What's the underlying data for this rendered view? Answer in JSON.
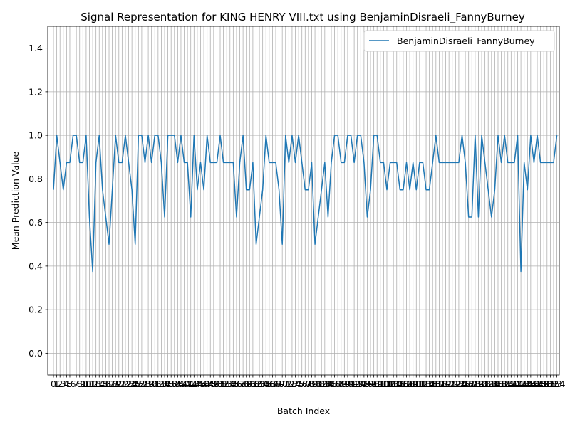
{
  "chart_data": {
    "type": "line",
    "title": "Signal Representation for KING HENRY VIII.txt using BenjaminDisraeli_FannyBurney",
    "xlabel": "Batch Index",
    "ylabel": "Mean Prediction Value",
    "ylim": [
      -0.1,
      1.5
    ],
    "xlim": [
      -1.75,
      154.75
    ],
    "yticks": [
      0.0,
      0.2,
      0.4,
      0.6,
      0.8,
      1.0,
      1.2,
      1.4
    ],
    "grid": true,
    "legend_position": "top-right",
    "series": [
      {
        "name": "BenjaminDisraeli_FannyBurney",
        "color": "#1f77b4",
        "values": [
          0.75,
          1.0,
          0.875,
          0.75,
          0.875,
          0.875,
          1.0,
          1.0,
          0.875,
          0.875,
          1.0,
          0.625,
          0.375,
          0.875,
          1.0,
          0.75,
          0.625,
          0.5,
          0.75,
          1.0,
          0.875,
          0.875,
          1.0,
          0.875,
          0.75,
          0.5,
          1.0,
          1.0,
          0.875,
          1.0,
          0.875,
          1.0,
          1.0,
          0.875,
          0.625,
          1.0,
          1.0,
          1.0,
          0.875,
          1.0,
          0.875,
          0.875,
          0.625,
          1.0,
          0.75,
          0.875,
          0.75,
          1.0,
          0.875,
          0.875,
          0.875,
          1.0,
          0.875,
          0.875,
          0.875,
          0.875,
          0.625,
          0.875,
          1.0,
          0.75,
          0.75,
          0.875,
          0.5,
          0.625,
          0.75,
          1.0,
          0.875,
          0.875,
          0.875,
          0.75,
          0.5,
          1.0,
          0.875,
          1.0,
          0.875,
          1.0,
          0.875,
          0.75,
          0.75,
          0.875,
          0.5,
          0.625,
          0.75,
          0.875,
          0.625,
          0.875,
          1.0,
          1.0,
          0.875,
          0.875,
          1.0,
          1.0,
          0.875,
          1.0,
          1.0,
          0.875,
          0.625,
          0.75,
          1.0,
          1.0,
          0.875,
          0.875,
          0.75,
          0.875,
          0.875,
          0.875,
          0.75,
          0.75,
          0.875,
          0.75,
          0.875,
          0.75,
          0.875,
          0.875,
          0.75,
          0.75,
          0.875,
          1.0,
          0.875,
          0.875,
          0.875,
          0.875,
          0.875,
          0.875,
          0.875,
          1.0,
          0.875,
          0.625,
          0.625,
          1.0,
          0.625,
          1.0,
          0.875,
          0.75,
          0.625,
          0.75,
          1.0,
          0.875,
          1.0,
          0.875,
          0.875,
          0.875,
          1.0,
          0.375,
          0.875,
          0.75,
          1.0,
          0.875,
          1.0,
          0.875,
          0.875,
          0.875,
          0.875,
          0.875,
          1.0
        ]
      }
    ]
  }
}
